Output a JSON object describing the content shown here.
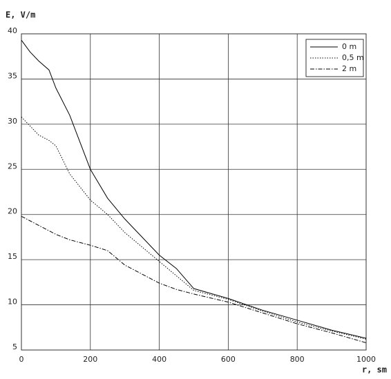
{
  "chart_data": {
    "type": "line",
    "y_label": "E, V/m",
    "x_label": "r, sm",
    "x": [
      0,
      25,
      50,
      80,
      100,
      140,
      200,
      250,
      300,
      400,
      450,
      500,
      600,
      700,
      800,
      900,
      1000
    ],
    "series": [
      {
        "name": "0 m",
        "color": "#000000",
        "dash": "solid",
        "values": [
          39.3,
          38,
          37,
          36,
          34,
          31,
          25,
          21.8,
          19.5,
          15.5,
          14,
          11.8,
          10.7,
          9.4,
          8.3,
          7.2,
          6.3
        ]
      },
      {
        "name": "0,5 m",
        "color": "#000000",
        "dash": "dotted",
        "values": [
          30.8,
          29.8,
          28.8,
          28.2,
          27.6,
          24.5,
          21.6,
          20,
          18,
          14.8,
          13.2,
          11.6,
          10.6,
          9.3,
          8.1,
          7.1,
          6.2
        ]
      },
      {
        "name": "2 m",
        "color": "#000000",
        "dash": "dashdot",
        "values": [
          19.8,
          19.3,
          18.8,
          18.2,
          17.8,
          17.2,
          16.6,
          16,
          14.4,
          12.4,
          11.7,
          11.2,
          10.3,
          9.1,
          7.9,
          6.9,
          5.8
        ]
      }
    ],
    "xlim": [
      0,
      1000
    ],
    "xticks": [
      0,
      200,
      400,
      600,
      800,
      1000
    ],
    "ylim": [
      5,
      40
    ],
    "yticks": [
      5,
      10,
      15,
      20,
      25,
      30,
      35,
      40
    ],
    "grid": true,
    "legend": "upper right"
  }
}
